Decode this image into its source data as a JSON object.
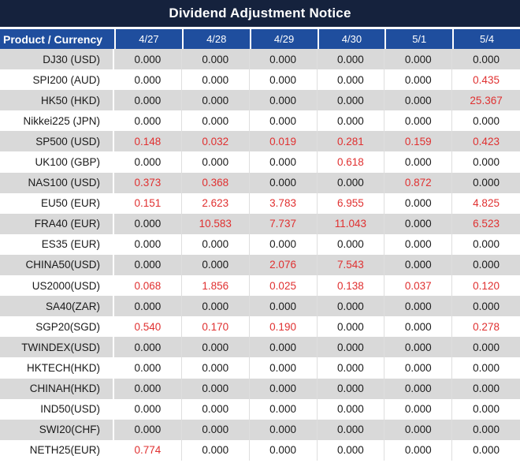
{
  "title": "Dividend Adjustment Notice",
  "colors": {
    "title_bar_bg": "#15223D",
    "header_bg": "#1F4E9E",
    "alt_row_bg": "#D9D9D9",
    "negative_or_adjusted_value": "#E03030",
    "normal_value": "#1a1a1a"
  },
  "table": {
    "header": {
      "product": "Product / Currency",
      "dates": [
        "4/27",
        "4/28",
        "4/29",
        "4/30",
        "5/1",
        "5/4"
      ]
    },
    "rows": [
      {
        "product": "DJ30 (USD)",
        "values": [
          "0.000",
          "0.000",
          "0.000",
          "0.000",
          "0.000",
          "0.000"
        ],
        "red": [
          false,
          false,
          false,
          false,
          false,
          false
        ]
      },
      {
        "product": "SPI200 (AUD)",
        "values": [
          "0.000",
          "0.000",
          "0.000",
          "0.000",
          "0.000",
          "0.435"
        ],
        "red": [
          false,
          false,
          false,
          false,
          false,
          true
        ]
      },
      {
        "product": "HK50 (HKD)",
        "values": [
          "0.000",
          "0.000",
          "0.000",
          "0.000",
          "0.000",
          "25.367"
        ],
        "red": [
          false,
          false,
          false,
          false,
          false,
          true
        ]
      },
      {
        "product": "Nikkei225 (JPN)",
        "values": [
          "0.000",
          "0.000",
          "0.000",
          "0.000",
          "0.000",
          "0.000"
        ],
        "red": [
          false,
          false,
          false,
          false,
          false,
          false
        ]
      },
      {
        "product": "SP500 (USD)",
        "values": [
          "0.148",
          "0.032",
          "0.019",
          "0.281",
          "0.159",
          "0.423"
        ],
        "red": [
          true,
          true,
          true,
          true,
          true,
          true
        ]
      },
      {
        "product": "UK100 (GBP)",
        "values": [
          "0.000",
          "0.000",
          "0.000",
          "0.618",
          "0.000",
          "0.000"
        ],
        "red": [
          false,
          false,
          false,
          true,
          false,
          false
        ]
      },
      {
        "product": "NAS100 (USD)",
        "values": [
          "0.373",
          "0.368",
          "0.000",
          "0.000",
          "0.872",
          "0.000"
        ],
        "red": [
          true,
          true,
          false,
          false,
          true,
          false
        ]
      },
      {
        "product": "EU50 (EUR)",
        "values": [
          "0.151",
          "2.623",
          "3.783",
          "6.955",
          "0.000",
          "4.825"
        ],
        "red": [
          true,
          true,
          true,
          true,
          false,
          true
        ]
      },
      {
        "product": "FRA40 (EUR)",
        "values": [
          "0.000",
          "10.583",
          "7.737",
          "11.043",
          "0.000",
          "6.523"
        ],
        "red": [
          false,
          true,
          true,
          true,
          false,
          true
        ]
      },
      {
        "product": "ES35 (EUR)",
        "values": [
          "0.000",
          "0.000",
          "0.000",
          "0.000",
          "0.000",
          "0.000"
        ],
        "red": [
          false,
          false,
          false,
          false,
          false,
          false
        ]
      },
      {
        "product": "CHINA50(USD)",
        "values": [
          "0.000",
          "0.000",
          "2.076",
          "7.543",
          "0.000",
          "0.000"
        ],
        "red": [
          false,
          false,
          true,
          true,
          false,
          false
        ]
      },
      {
        "product": "US2000(USD)",
        "values": [
          "0.068",
          "1.856",
          "0.025",
          "0.138",
          "0.037",
          "0.120"
        ],
        "red": [
          true,
          true,
          true,
          true,
          true,
          true
        ]
      },
      {
        "product": "SA40(ZAR)",
        "values": [
          "0.000",
          "0.000",
          "0.000",
          "0.000",
          "0.000",
          "0.000"
        ],
        "red": [
          false,
          false,
          false,
          false,
          false,
          false
        ]
      },
      {
        "product": "SGP20(SGD)",
        "values": [
          "0.540",
          "0.170",
          "0.190",
          "0.000",
          "0.000",
          "0.278"
        ],
        "red": [
          true,
          true,
          true,
          false,
          false,
          true
        ]
      },
      {
        "product": "TWINDEX(USD)",
        "values": [
          "0.000",
          "0.000",
          "0.000",
          "0.000",
          "0.000",
          "0.000"
        ],
        "red": [
          false,
          false,
          false,
          false,
          false,
          false
        ]
      },
      {
        "product": "HKTECH(HKD)",
        "values": [
          "0.000",
          "0.000",
          "0.000",
          "0.000",
          "0.000",
          "0.000"
        ],
        "red": [
          false,
          false,
          false,
          false,
          false,
          false
        ]
      },
      {
        "product": "CHINAH(HKD)",
        "values": [
          "0.000",
          "0.000",
          "0.000",
          "0.000",
          "0.000",
          "0.000"
        ],
        "red": [
          false,
          false,
          false,
          false,
          false,
          false
        ]
      },
      {
        "product": "IND50(USD)",
        "values": [
          "0.000",
          "0.000",
          "0.000",
          "0.000",
          "0.000",
          "0.000"
        ],
        "red": [
          false,
          false,
          false,
          false,
          false,
          false
        ]
      },
      {
        "product": "SWI20(CHF)",
        "values": [
          "0.000",
          "0.000",
          "0.000",
          "0.000",
          "0.000",
          "0.000"
        ],
        "red": [
          false,
          false,
          false,
          false,
          false,
          false
        ]
      },
      {
        "product": "NETH25(EUR)",
        "values": [
          "0.774",
          "0.000",
          "0.000",
          "0.000",
          "0.000",
          "0.000"
        ],
        "red": [
          true,
          false,
          false,
          false,
          false,
          false
        ]
      }
    ]
  }
}
